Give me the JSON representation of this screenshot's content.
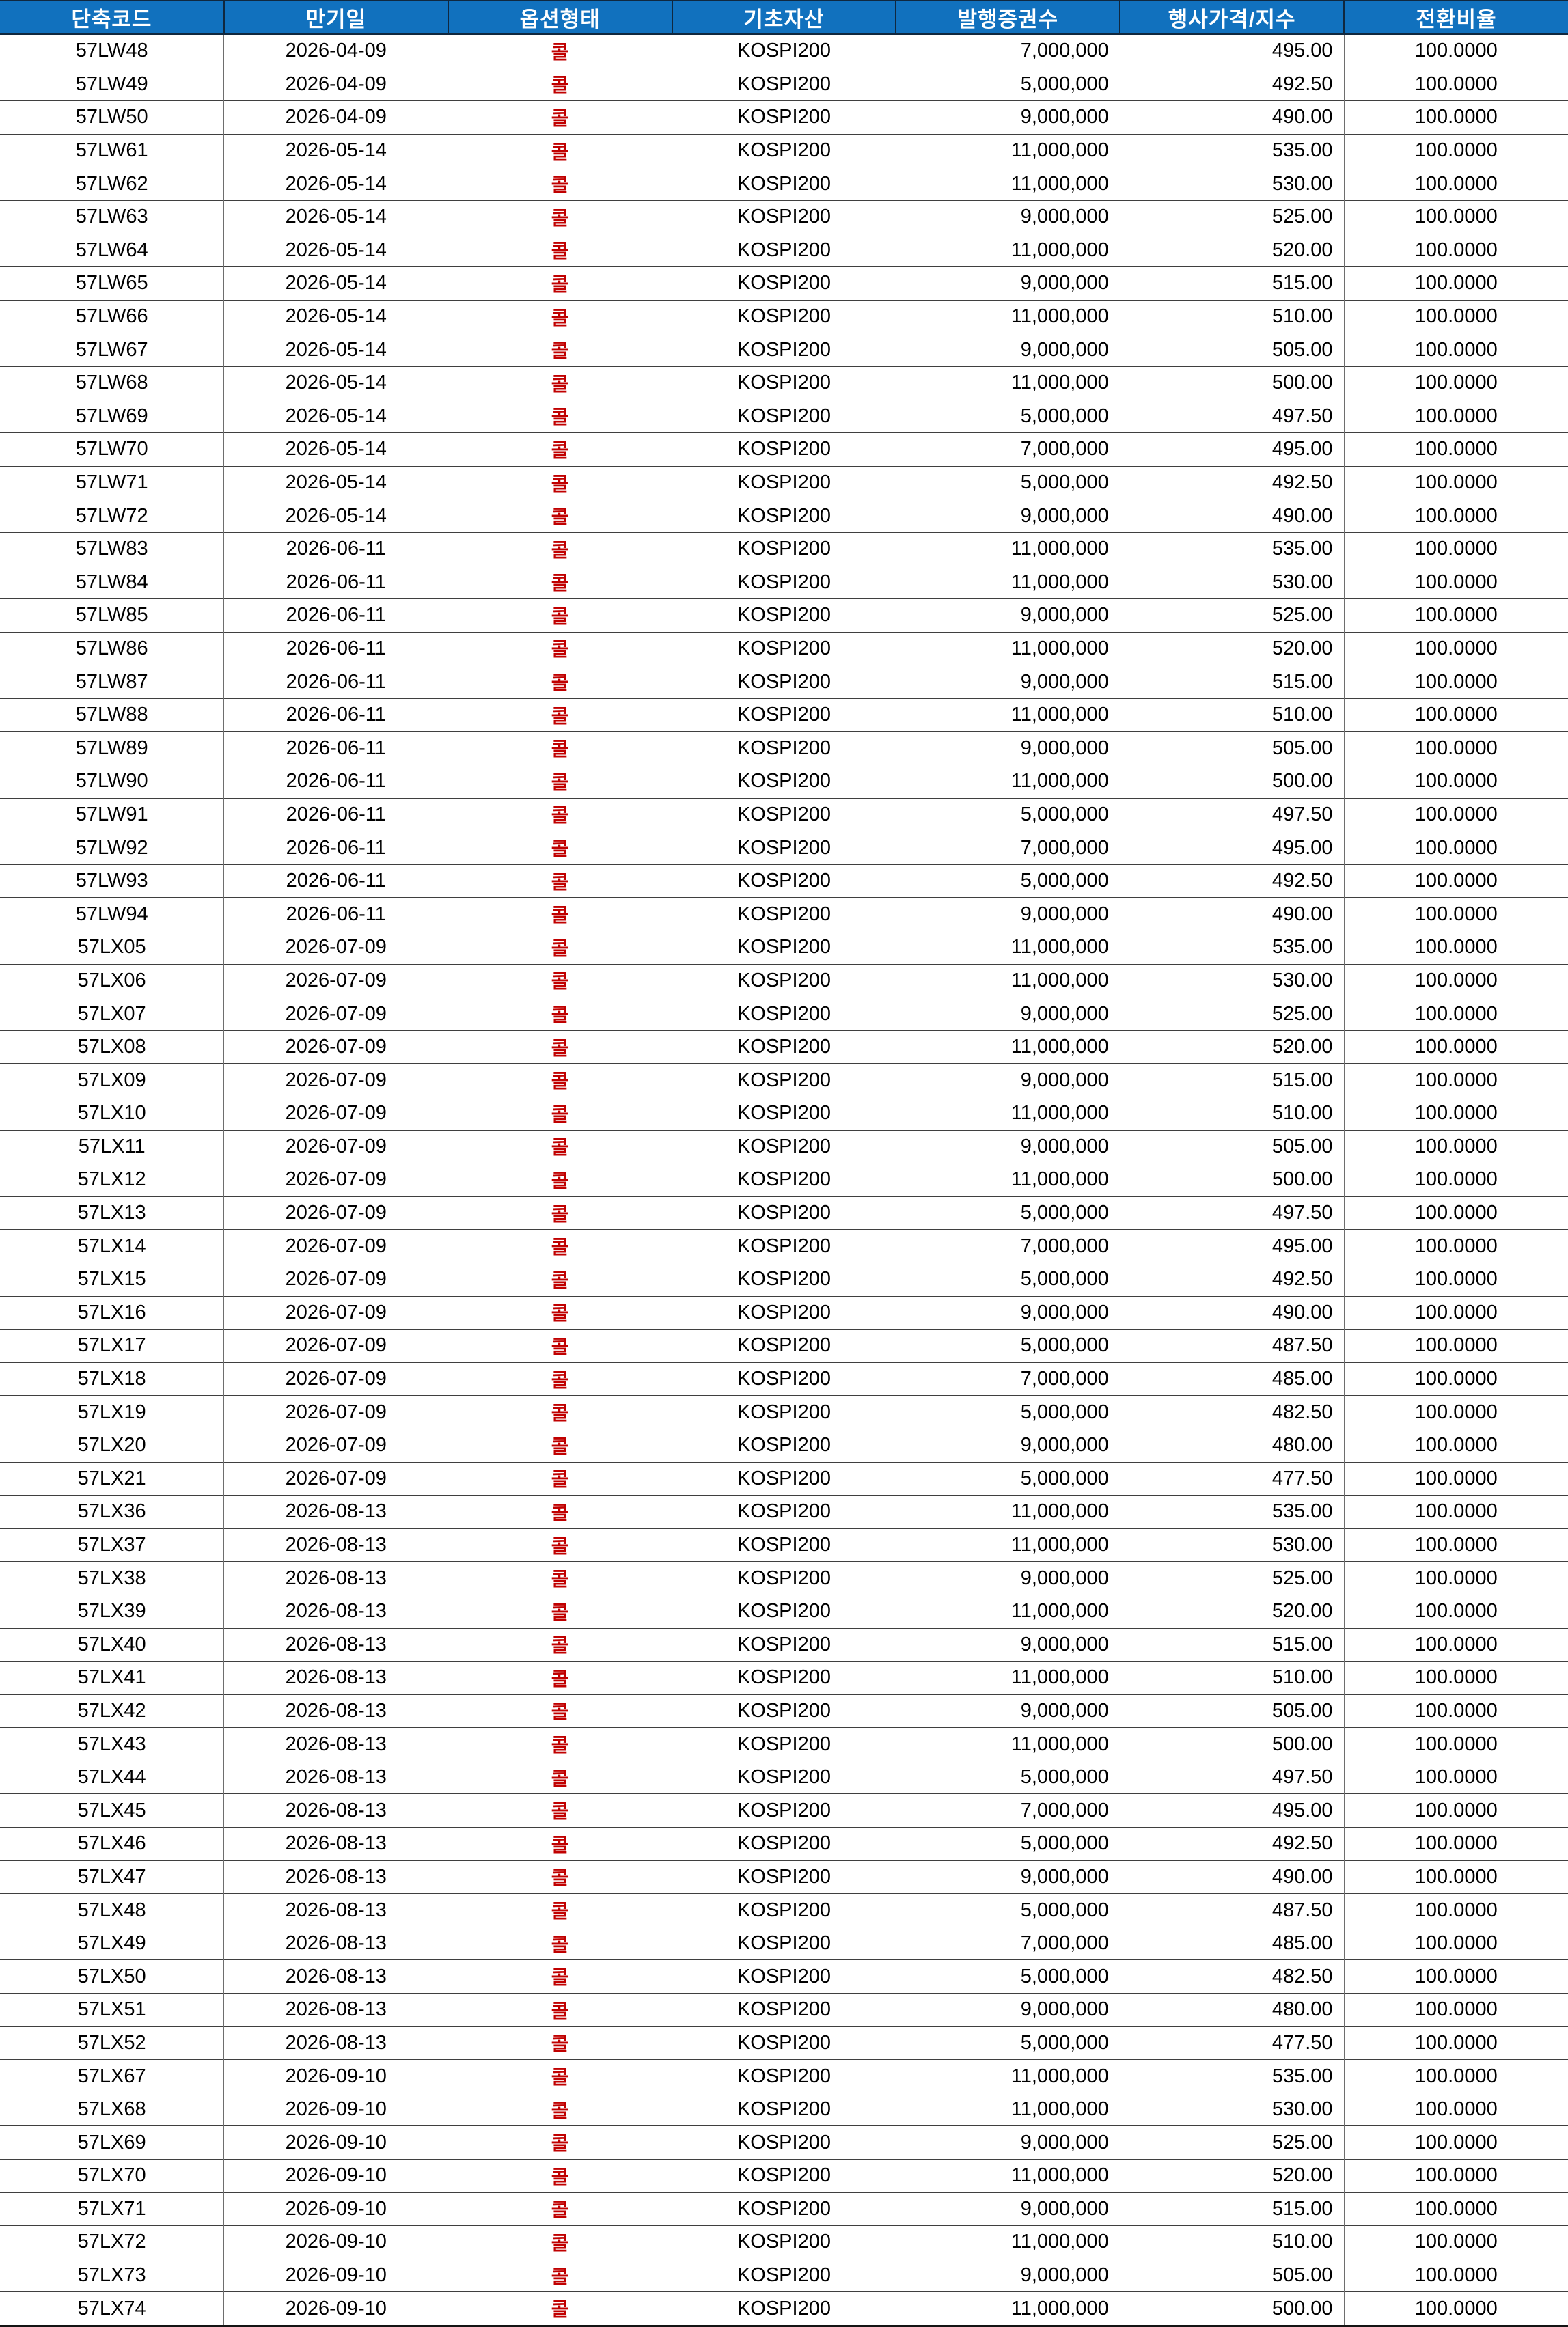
{
  "colors": {
    "header_bg": "#1171BE",
    "header_text": "#FFFFFF",
    "call_red": "#C00000",
    "grid_vertical": "#6E6E6E",
    "grid_horizontal": "#3F3F3F",
    "row_bg": "#FFFFFF"
  },
  "table": {
    "columns": [
      {
        "key": "code",
        "label": "단축코드",
        "align": "center"
      },
      {
        "key": "maturity",
        "label": "만기일",
        "align": "center"
      },
      {
        "key": "option-type",
        "label": "옵션형태",
        "align": "center"
      },
      {
        "key": "underlying",
        "label": "기초자산",
        "align": "center"
      },
      {
        "key": "issued-count",
        "label": "발행증권수",
        "align": "right"
      },
      {
        "key": "strike-price",
        "label": "행사가격/지수",
        "align": "right"
      },
      {
        "key": "conversion-ratio",
        "label": "전환비율",
        "align": "center"
      }
    ],
    "rows": [
      [
        "57LW48",
        "2026-04-09",
        "콜",
        "KOSPI200",
        "7,000,000",
        "495.00",
        "100.0000"
      ],
      [
        "57LW49",
        "2026-04-09",
        "콜",
        "KOSPI200",
        "5,000,000",
        "492.50",
        "100.0000"
      ],
      [
        "57LW50",
        "2026-04-09",
        "콜",
        "KOSPI200",
        "9,000,000",
        "490.00",
        "100.0000"
      ],
      [
        "57LW61",
        "2026-05-14",
        "콜",
        "KOSPI200",
        "11,000,000",
        "535.00",
        "100.0000"
      ],
      [
        "57LW62",
        "2026-05-14",
        "콜",
        "KOSPI200",
        "11,000,000",
        "530.00",
        "100.0000"
      ],
      [
        "57LW63",
        "2026-05-14",
        "콜",
        "KOSPI200",
        "9,000,000",
        "525.00",
        "100.0000"
      ],
      [
        "57LW64",
        "2026-05-14",
        "콜",
        "KOSPI200",
        "11,000,000",
        "520.00",
        "100.0000"
      ],
      [
        "57LW65",
        "2026-05-14",
        "콜",
        "KOSPI200",
        "9,000,000",
        "515.00",
        "100.0000"
      ],
      [
        "57LW66",
        "2026-05-14",
        "콜",
        "KOSPI200",
        "11,000,000",
        "510.00",
        "100.0000"
      ],
      [
        "57LW67",
        "2026-05-14",
        "콜",
        "KOSPI200",
        "9,000,000",
        "505.00",
        "100.0000"
      ],
      [
        "57LW68",
        "2026-05-14",
        "콜",
        "KOSPI200",
        "11,000,000",
        "500.00",
        "100.0000"
      ],
      [
        "57LW69",
        "2026-05-14",
        "콜",
        "KOSPI200",
        "5,000,000",
        "497.50",
        "100.0000"
      ],
      [
        "57LW70",
        "2026-05-14",
        "콜",
        "KOSPI200",
        "7,000,000",
        "495.00",
        "100.0000"
      ],
      [
        "57LW71",
        "2026-05-14",
        "콜",
        "KOSPI200",
        "5,000,000",
        "492.50",
        "100.0000"
      ],
      [
        "57LW72",
        "2026-05-14",
        "콜",
        "KOSPI200",
        "9,000,000",
        "490.00",
        "100.0000"
      ],
      [
        "57LW83",
        "2026-06-11",
        "콜",
        "KOSPI200",
        "11,000,000",
        "535.00",
        "100.0000"
      ],
      [
        "57LW84",
        "2026-06-11",
        "콜",
        "KOSPI200",
        "11,000,000",
        "530.00",
        "100.0000"
      ],
      [
        "57LW85",
        "2026-06-11",
        "콜",
        "KOSPI200",
        "9,000,000",
        "525.00",
        "100.0000"
      ],
      [
        "57LW86",
        "2026-06-11",
        "콜",
        "KOSPI200",
        "11,000,000",
        "520.00",
        "100.0000"
      ],
      [
        "57LW87",
        "2026-06-11",
        "콜",
        "KOSPI200",
        "9,000,000",
        "515.00",
        "100.0000"
      ],
      [
        "57LW88",
        "2026-06-11",
        "콜",
        "KOSPI200",
        "11,000,000",
        "510.00",
        "100.0000"
      ],
      [
        "57LW89",
        "2026-06-11",
        "콜",
        "KOSPI200",
        "9,000,000",
        "505.00",
        "100.0000"
      ],
      [
        "57LW90",
        "2026-06-11",
        "콜",
        "KOSPI200",
        "11,000,000",
        "500.00",
        "100.0000"
      ],
      [
        "57LW91",
        "2026-06-11",
        "콜",
        "KOSPI200",
        "5,000,000",
        "497.50",
        "100.0000"
      ],
      [
        "57LW92",
        "2026-06-11",
        "콜",
        "KOSPI200",
        "7,000,000",
        "495.00",
        "100.0000"
      ],
      [
        "57LW93",
        "2026-06-11",
        "콜",
        "KOSPI200",
        "5,000,000",
        "492.50",
        "100.0000"
      ],
      [
        "57LW94",
        "2026-06-11",
        "콜",
        "KOSPI200",
        "9,000,000",
        "490.00",
        "100.0000"
      ],
      [
        "57LX05",
        "2026-07-09",
        "콜",
        "KOSPI200",
        "11,000,000",
        "535.00",
        "100.0000"
      ],
      [
        "57LX06",
        "2026-07-09",
        "콜",
        "KOSPI200",
        "11,000,000",
        "530.00",
        "100.0000"
      ],
      [
        "57LX07",
        "2026-07-09",
        "콜",
        "KOSPI200",
        "9,000,000",
        "525.00",
        "100.0000"
      ],
      [
        "57LX08",
        "2026-07-09",
        "콜",
        "KOSPI200",
        "11,000,000",
        "520.00",
        "100.0000"
      ],
      [
        "57LX09",
        "2026-07-09",
        "콜",
        "KOSPI200",
        "9,000,000",
        "515.00",
        "100.0000"
      ],
      [
        "57LX10",
        "2026-07-09",
        "콜",
        "KOSPI200",
        "11,000,000",
        "510.00",
        "100.0000"
      ],
      [
        "57LX11",
        "2026-07-09",
        "콜",
        "KOSPI200",
        "9,000,000",
        "505.00",
        "100.0000"
      ],
      [
        "57LX12",
        "2026-07-09",
        "콜",
        "KOSPI200",
        "11,000,000",
        "500.00",
        "100.0000"
      ],
      [
        "57LX13",
        "2026-07-09",
        "콜",
        "KOSPI200",
        "5,000,000",
        "497.50",
        "100.0000"
      ],
      [
        "57LX14",
        "2026-07-09",
        "콜",
        "KOSPI200",
        "7,000,000",
        "495.00",
        "100.0000"
      ],
      [
        "57LX15",
        "2026-07-09",
        "콜",
        "KOSPI200",
        "5,000,000",
        "492.50",
        "100.0000"
      ],
      [
        "57LX16",
        "2026-07-09",
        "콜",
        "KOSPI200",
        "9,000,000",
        "490.00",
        "100.0000"
      ],
      [
        "57LX17",
        "2026-07-09",
        "콜",
        "KOSPI200",
        "5,000,000",
        "487.50",
        "100.0000"
      ],
      [
        "57LX18",
        "2026-07-09",
        "콜",
        "KOSPI200",
        "7,000,000",
        "485.00",
        "100.0000"
      ],
      [
        "57LX19",
        "2026-07-09",
        "콜",
        "KOSPI200",
        "5,000,000",
        "482.50",
        "100.0000"
      ],
      [
        "57LX20",
        "2026-07-09",
        "콜",
        "KOSPI200",
        "9,000,000",
        "480.00",
        "100.0000"
      ],
      [
        "57LX21",
        "2026-07-09",
        "콜",
        "KOSPI200",
        "5,000,000",
        "477.50",
        "100.0000"
      ],
      [
        "57LX36",
        "2026-08-13",
        "콜",
        "KOSPI200",
        "11,000,000",
        "535.00",
        "100.0000"
      ],
      [
        "57LX37",
        "2026-08-13",
        "콜",
        "KOSPI200",
        "11,000,000",
        "530.00",
        "100.0000"
      ],
      [
        "57LX38",
        "2026-08-13",
        "콜",
        "KOSPI200",
        "9,000,000",
        "525.00",
        "100.0000"
      ],
      [
        "57LX39",
        "2026-08-13",
        "콜",
        "KOSPI200",
        "11,000,000",
        "520.00",
        "100.0000"
      ],
      [
        "57LX40",
        "2026-08-13",
        "콜",
        "KOSPI200",
        "9,000,000",
        "515.00",
        "100.0000"
      ],
      [
        "57LX41",
        "2026-08-13",
        "콜",
        "KOSPI200",
        "11,000,000",
        "510.00",
        "100.0000"
      ],
      [
        "57LX42",
        "2026-08-13",
        "콜",
        "KOSPI200",
        "9,000,000",
        "505.00",
        "100.0000"
      ],
      [
        "57LX43",
        "2026-08-13",
        "콜",
        "KOSPI200",
        "11,000,000",
        "500.00",
        "100.0000"
      ],
      [
        "57LX44",
        "2026-08-13",
        "콜",
        "KOSPI200",
        "5,000,000",
        "497.50",
        "100.0000"
      ],
      [
        "57LX45",
        "2026-08-13",
        "콜",
        "KOSPI200",
        "7,000,000",
        "495.00",
        "100.0000"
      ],
      [
        "57LX46",
        "2026-08-13",
        "콜",
        "KOSPI200",
        "5,000,000",
        "492.50",
        "100.0000"
      ],
      [
        "57LX47",
        "2026-08-13",
        "콜",
        "KOSPI200",
        "9,000,000",
        "490.00",
        "100.0000"
      ],
      [
        "57LX48",
        "2026-08-13",
        "콜",
        "KOSPI200",
        "5,000,000",
        "487.50",
        "100.0000"
      ],
      [
        "57LX49",
        "2026-08-13",
        "콜",
        "KOSPI200",
        "7,000,000",
        "485.00",
        "100.0000"
      ],
      [
        "57LX50",
        "2026-08-13",
        "콜",
        "KOSPI200",
        "5,000,000",
        "482.50",
        "100.0000"
      ],
      [
        "57LX51",
        "2026-08-13",
        "콜",
        "KOSPI200",
        "9,000,000",
        "480.00",
        "100.0000"
      ],
      [
        "57LX52",
        "2026-08-13",
        "콜",
        "KOSPI200",
        "5,000,000",
        "477.50",
        "100.0000"
      ],
      [
        "57LX67",
        "2026-09-10",
        "콜",
        "KOSPI200",
        "11,000,000",
        "535.00",
        "100.0000"
      ],
      [
        "57LX68",
        "2026-09-10",
        "콜",
        "KOSPI200",
        "11,000,000",
        "530.00",
        "100.0000"
      ],
      [
        "57LX69",
        "2026-09-10",
        "콜",
        "KOSPI200",
        "9,000,000",
        "525.00",
        "100.0000"
      ],
      [
        "57LX70",
        "2026-09-10",
        "콜",
        "KOSPI200",
        "11,000,000",
        "520.00",
        "100.0000"
      ],
      [
        "57LX71",
        "2026-09-10",
        "콜",
        "KOSPI200",
        "9,000,000",
        "515.00",
        "100.0000"
      ],
      [
        "57LX72",
        "2026-09-10",
        "콜",
        "KOSPI200",
        "11,000,000",
        "510.00",
        "100.0000"
      ],
      [
        "57LX73",
        "2026-09-10",
        "콜",
        "KOSPI200",
        "9,000,000",
        "505.00",
        "100.0000"
      ],
      [
        "57LX74",
        "2026-09-10",
        "콜",
        "KOSPI200",
        "11,000,000",
        "500.00",
        "100.0000"
      ]
    ]
  }
}
